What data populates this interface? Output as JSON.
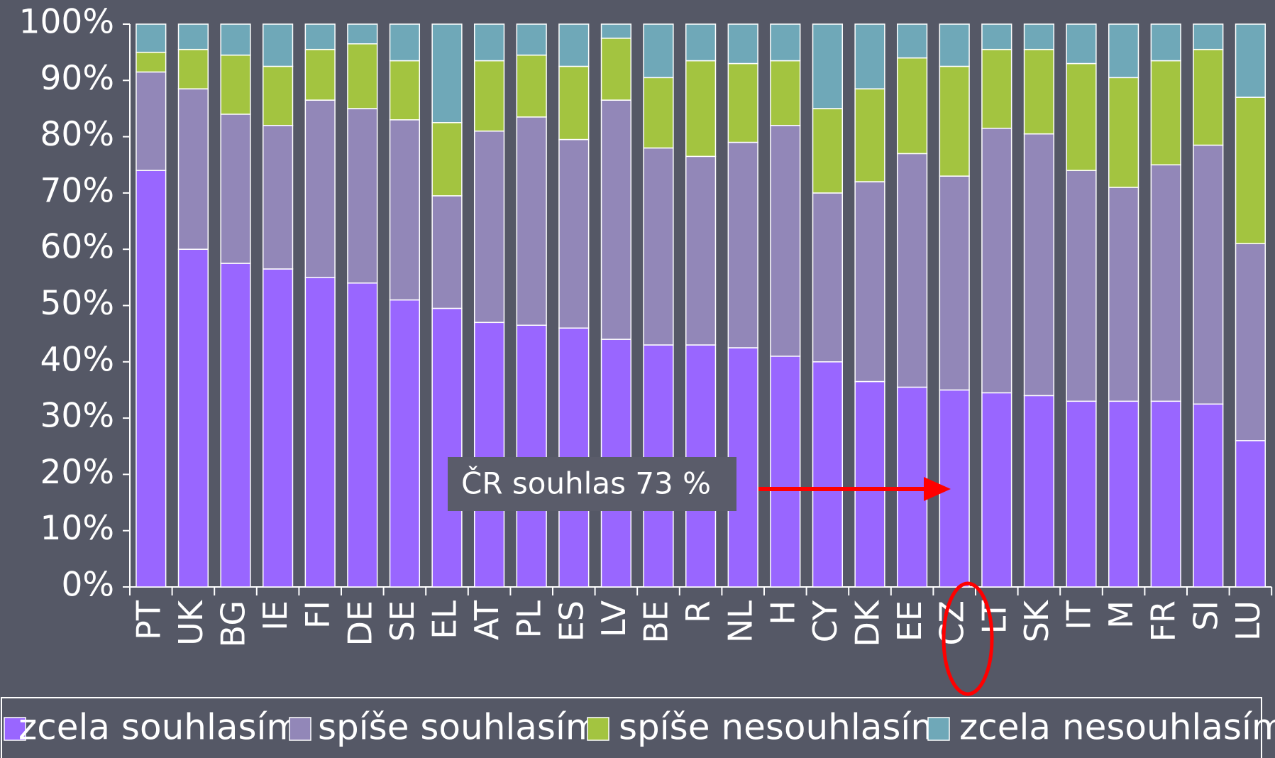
{
  "chart_data": {
    "type": "stacked_bar",
    "categories": [
      "PT",
      "UK",
      "BG",
      "IE",
      "FI",
      "DE",
      "SE",
      "EL",
      "AT",
      "PL",
      "ES",
      "LV",
      "BE",
      "R",
      "NL",
      "H",
      "CY",
      "DK",
      "EE",
      "CZ",
      "LT",
      "SK",
      "IT",
      "M",
      "FR",
      "SI",
      "LU"
    ],
    "series": [
      {
        "name": "zcela souhlasím",
        "color": "#9966ff",
        "values": [
          74,
          60,
          57.5,
          56.5,
          55,
          54,
          51,
          49.5,
          47,
          46.5,
          46,
          44,
          43,
          43,
          42.5,
          41,
          40,
          36.5,
          35.5,
          35,
          34.5,
          34,
          33,
          33,
          33,
          32.5,
          26
        ]
      },
      {
        "name": "spíše souhlasím",
        "color": "#9287b8",
        "values": [
          17.5,
          28.5,
          26.5,
          25.5,
          31.5,
          31,
          32,
          20,
          34,
          37,
          33.5,
          42.5,
          35,
          33.5,
          36.5,
          41,
          30,
          35.5,
          41.5,
          38,
          47,
          46.5,
          41,
          38,
          42,
          46,
          35
        ]
      },
      {
        "name": "spíše nesouhlasím",
        "color": "#a3c440",
        "values": [
          3.5,
          7,
          10.5,
          10.5,
          9,
          11.5,
          10.5,
          13,
          12.5,
          11,
          13,
          11,
          12.5,
          17,
          14,
          11.5,
          15,
          16.5,
          17,
          19.5,
          14,
          15,
          19,
          19.5,
          18.5,
          17,
          26
        ]
      },
      {
        "name": "zcela nesouhlasím",
        "color": "#6fa8b8",
        "values": [
          5,
          4.5,
          5.5,
          7.5,
          4.5,
          3.5,
          6.5,
          17.5,
          6.5,
          5.5,
          7.5,
          2.5,
          9.5,
          6.5,
          7,
          6.5,
          15,
          11.5,
          6,
          7.5,
          4.5,
          4.5,
          7,
          9.5,
          6.5,
          4.5,
          13
        ]
      }
    ],
    "ylim": [
      0,
      100
    ],
    "yticks": [
      {
        "value": 0,
        "label": "0%"
      },
      {
        "value": 10,
        "label": "10%"
      },
      {
        "value": 20,
        "label": "20%"
      },
      {
        "value": 30,
        "label": "30%"
      },
      {
        "value": 40,
        "label": "40%"
      },
      {
        "value": 50,
        "label": "50%"
      },
      {
        "value": 60,
        "label": "60%"
      },
      {
        "value": 70,
        "label": "70%"
      },
      {
        "value": 80,
        "label": "80%"
      },
      {
        "value": 90,
        "label": "90%"
      },
      {
        "value": 100,
        "label": "100%"
      }
    ],
    "annotation": "ČR souhlas 73 %",
    "legend": "bottom"
  }
}
